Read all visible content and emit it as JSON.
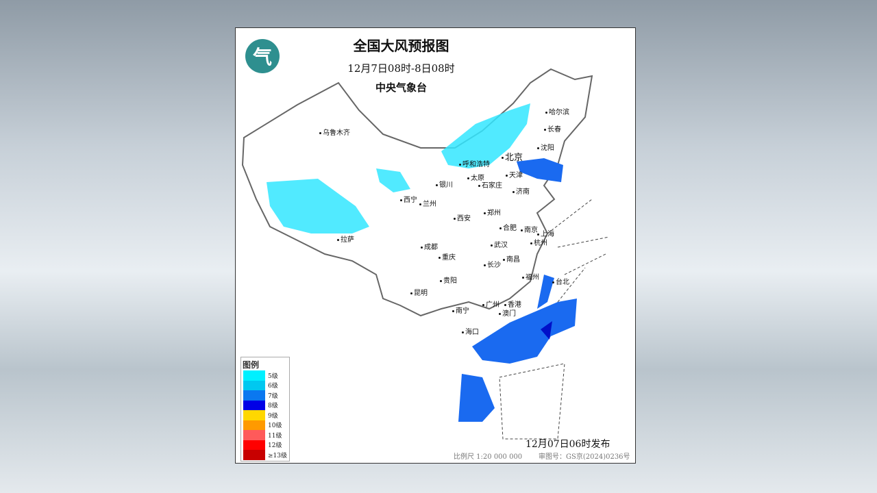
{
  "map": {
    "title": "全国大风预报图",
    "period": "12月7日08时-8日08时",
    "agency": "中央气象台",
    "logo_text": "气",
    "issued": "12月07日06时发布",
    "scale": "比例尺 1:20 000 000",
    "review_number": "审图号：GS京(2024)0236号",
    "cities": [
      "乌鲁木齐",
      "哈尔滨",
      "长春",
      "沈阳",
      "北京",
      "呼和浩特",
      "天津",
      "银川",
      "太原",
      "石家庄",
      "济南",
      "西宁",
      "兰州",
      "西安",
      "郑州",
      "合肥",
      "南京",
      "上海",
      "杭州",
      "拉萨",
      "成都",
      "武汉",
      "重庆",
      "长沙",
      "南昌",
      "福州",
      "台北",
      "贵阳",
      "昆明",
      "广州",
      "香港",
      "澳门",
      "南宁",
      "海口"
    ],
    "legend": {
      "title": "图例",
      "items": [
        {
          "label": "5级",
          "color": "#00f0ff"
        },
        {
          "label": "6级",
          "color": "#00c8f0"
        },
        {
          "label": "7级",
          "color": "#0a78f0"
        },
        {
          "label": "8级",
          "color": "#0000e6"
        },
        {
          "label": "9级",
          "color": "#ffd700"
        },
        {
          "label": "10级",
          "color": "#ff9a00"
        },
        {
          "label": "11级",
          "color": "#ff5a5a"
        },
        {
          "label": "12级",
          "color": "#ff0000"
        },
        {
          "label": "≥13级",
          "color": "#c80000"
        }
      ]
    }
  }
}
